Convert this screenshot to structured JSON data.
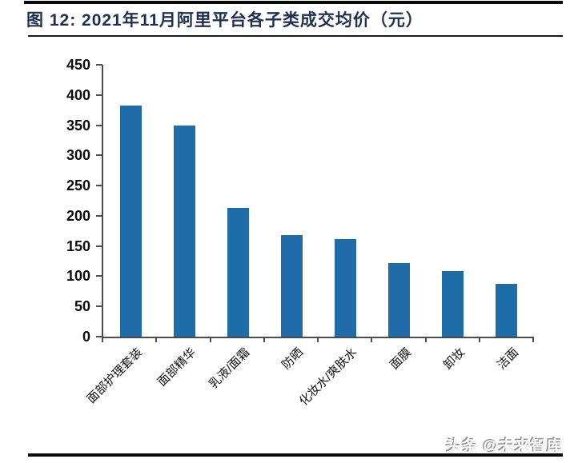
{
  "header": {
    "figure_label": "图 12:",
    "title": "图 12:  2021年11月阿里平台各子类成交均价（元）"
  },
  "watermark": {
    "text": "头条 @未来智库"
  },
  "colors": {
    "bar": "#1f6da8",
    "title_text": "#1f3050",
    "axis": "#4d4d4d",
    "rule": "#0a0a0a"
  },
  "chart_data": {
    "type": "bar",
    "title": "2021年11月阿里平台各子类成交均价（元）",
    "categories": [
      "面部护理套装",
      "面部精华",
      "乳液/面霜",
      "防晒",
      "化妆水/爽肤水",
      "面膜",
      "卸妆",
      "洁面"
    ],
    "values": [
      382,
      350,
      213,
      168,
      162,
      122,
      108,
      88
    ],
    "xlabel": "",
    "ylabel": "",
    "ylim": [
      0,
      450
    ],
    "yticks": [
      0,
      50,
      100,
      150,
      200,
      250,
      300,
      350,
      400,
      450
    ],
    "grid": false,
    "legend_position": "none",
    "bar_color": "#1f6da8",
    "x_label_rotation_deg": 45
  }
}
